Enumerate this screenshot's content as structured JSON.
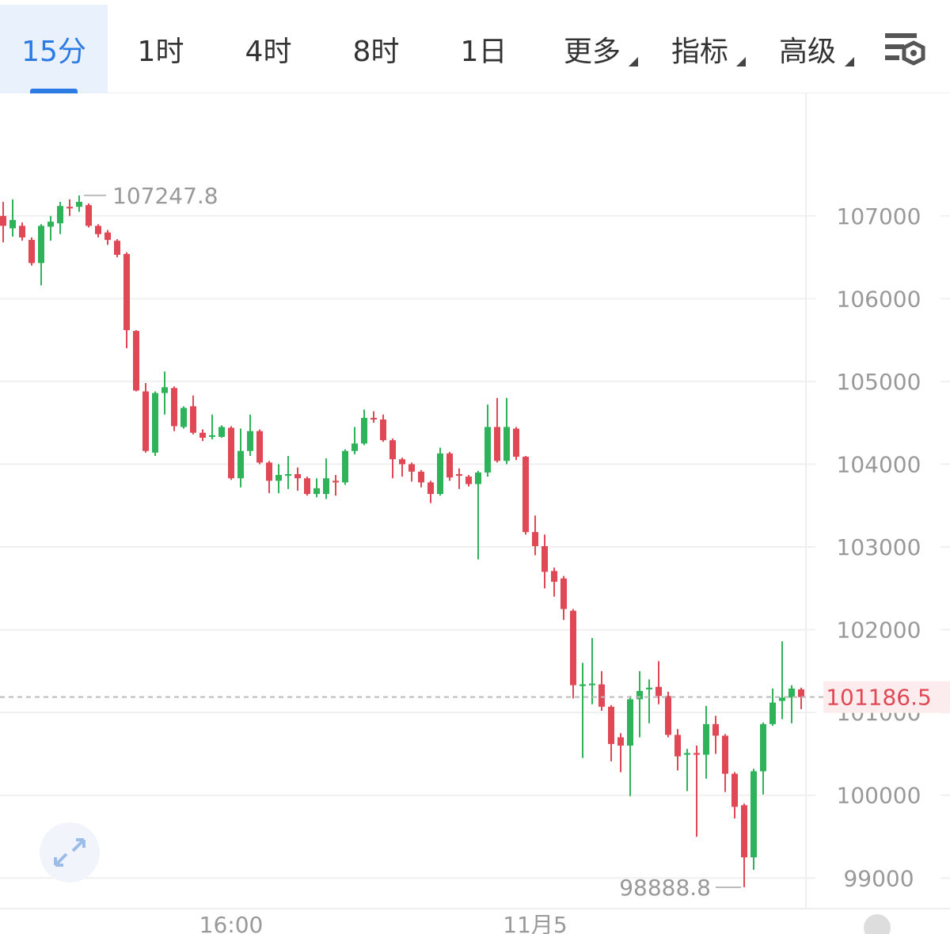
{
  "toolbar": {
    "tabs": [
      "15分",
      "1时",
      "4时",
      "8时",
      "1日",
      "更多",
      "指标",
      "高级"
    ]
  },
  "chart_data": {
    "type": "candlestick",
    "categories": [
      null,
      null,
      null,
      null,
      null,
      null,
      null,
      null,
      null,
      null,
      null,
      null,
      null,
      null,
      null,
      null,
      null,
      null,
      null,
      null,
      null,
      null,
      null,
      null,
      "16:00",
      null,
      null,
      null,
      null,
      null,
      null,
      null,
      null,
      null,
      null,
      null,
      null,
      null,
      null,
      null,
      null,
      null,
      null,
      null,
      null,
      null,
      null,
      null,
      null,
      null,
      null,
      null,
      null,
      null,
      null,
      null,
      "11月5",
      null,
      null,
      null,
      null,
      null,
      null,
      null,
      null,
      null,
      null,
      null,
      null,
      null,
      null,
      null,
      null,
      null,
      null,
      null,
      null,
      null,
      null,
      null,
      null,
      null,
      null,
      null,
      null
    ],
    "open": [
      107000,
      106850,
      106880,
      106710,
      106430,
      106870,
      106910,
      107110,
      107110,
      107130,
      106880,
      106800,
      106700,
      106540,
      105610,
      104880,
      104140,
      104860,
      104920,
      104450,
      104700,
      104380,
      104330,
      104330,
      104440,
      103830,
      104160,
      104400,
      104020,
      103800,
      103860,
      103880,
      103830,
      103640,
      103640,
      103800,
      103780,
      104160,
      104250,
      104560,
      104540,
      104290,
      104060,
      104000,
      103910,
      103780,
      103640,
      104130,
      103880,
      103850,
      103760,
      103900,
      104450,
      104040,
      104430,
      104090,
      103180,
      103010,
      102710,
      102620,
      102230,
      101320,
      101330,
      101340,
      101070,
      100700,
      100600,
      101160,
      101280,
      101310,
      101200,
      100730,
      100490,
      100510,
      100490,
      100860,
      100720,
      100260,
      99880,
      99250,
      100290,
      100860,
      101140,
      101180,
      101280
    ],
    "high": [
      107170,
      107200,
      106920,
      106740,
      106900,
      107000,
      107170,
      107200,
      107247.8,
      107150,
      106900,
      106830,
      106720,
      106560,
      105620,
      104980,
      104880,
      105120,
      104940,
      104700,
      104830,
      104420,
      104600,
      104470,
      104460,
      104430,
      104600,
      104420,
      104040,
      104000,
      104100,
      103960,
      103850,
      103830,
      104070,
      103870,
      104180,
      104450,
      104660,
      104640,
      104600,
      104310,
      104080,
      104020,
      103930,
      103800,
      104200,
      104150,
      103950,
      103870,
      103920,
      104720,
      104800,
      104800,
      104450,
      104100,
      103380,
      103150,
      102750,
      102650,
      102250,
      101600,
      101900,
      101500,
      101090,
      100750,
      101200,
      101500,
      101400,
      101620,
      101250,
      100800,
      100560,
      100600,
      101080,
      100960,
      100740,
      100280,
      99900,
      100320,
      100880,
      101290,
      101860,
      101330,
      101300
    ],
    "low": [
      106680,
      106750,
      106700,
      106400,
      106160,
      106700,
      106780,
      107000,
      107050,
      106860,
      106740,
      106650,
      106500,
      105400,
      104880,
      104140,
      104100,
      104600,
      104400,
      104430,
      104360,
      104280,
      104300,
      104320,
      103810,
      103720,
      104100,
      104000,
      103650,
      103650,
      103700,
      103680,
      103620,
      103600,
      103580,
      103620,
      103750,
      104120,
      104230,
      104500,
      104270,
      103830,
      103850,
      103790,
      103720,
      103530,
      103620,
      103800,
      103700,
      103730,
      102850,
      103850,
      104020,
      104000,
      104050,
      103150,
      102900,
      102500,
      102400,
      102120,
      101170,
      100450,
      101100,
      101020,
      100410,
      100280,
      99990,
      100700,
      100870,
      101100,
      100700,
      100300,
      100050,
      99500,
      100200,
      100500,
      100040,
      99720,
      98888.8,
      99100,
      100010,
      100840,
      100920,
      100870,
      101040
    ],
    "close": [
      106880,
      106950,
      106740,
      106430,
      106880,
      106930,
      107120,
      107090,
      107170,
      106880,
      106780,
      106710,
      106530,
      105620,
      104890,
      104160,
      104860,
      104930,
      104460,
      104680,
      104380,
      104320,
      104350,
      104450,
      103830,
      104160,
      104400,
      104020,
      103800,
      103870,
      103880,
      103830,
      103640,
      103710,
      103830,
      103780,
      104160,
      104250,
      104560,
      104540,
      104290,
      104060,
      104000,
      103910,
      103780,
      103640,
      104130,
      103840,
      103860,
      103760,
      103900,
      104450,
      104040,
      104450,
      104090,
      103180,
      103010,
      102700,
      102580,
      102250,
      101330,
      101340,
      101350,
      101070,
      100620,
      100600,
      101160,
      101260,
      101300,
      101200,
      100730,
      100470,
      100510,
      100490,
      100860,
      100720,
      100260,
      99860,
      99250,
      100290,
      100860,
      101120,
      101180,
      101290,
      101186.5
    ],
    "up_color": "#2fb35a",
    "down_color": "#e04855",
    "ylim": [
      98630,
      108480
    ],
    "yticks": [
      99000,
      100000,
      101000,
      102000,
      103000,
      104000,
      105000,
      106000,
      107000
    ],
    "grid": true
  }
}
